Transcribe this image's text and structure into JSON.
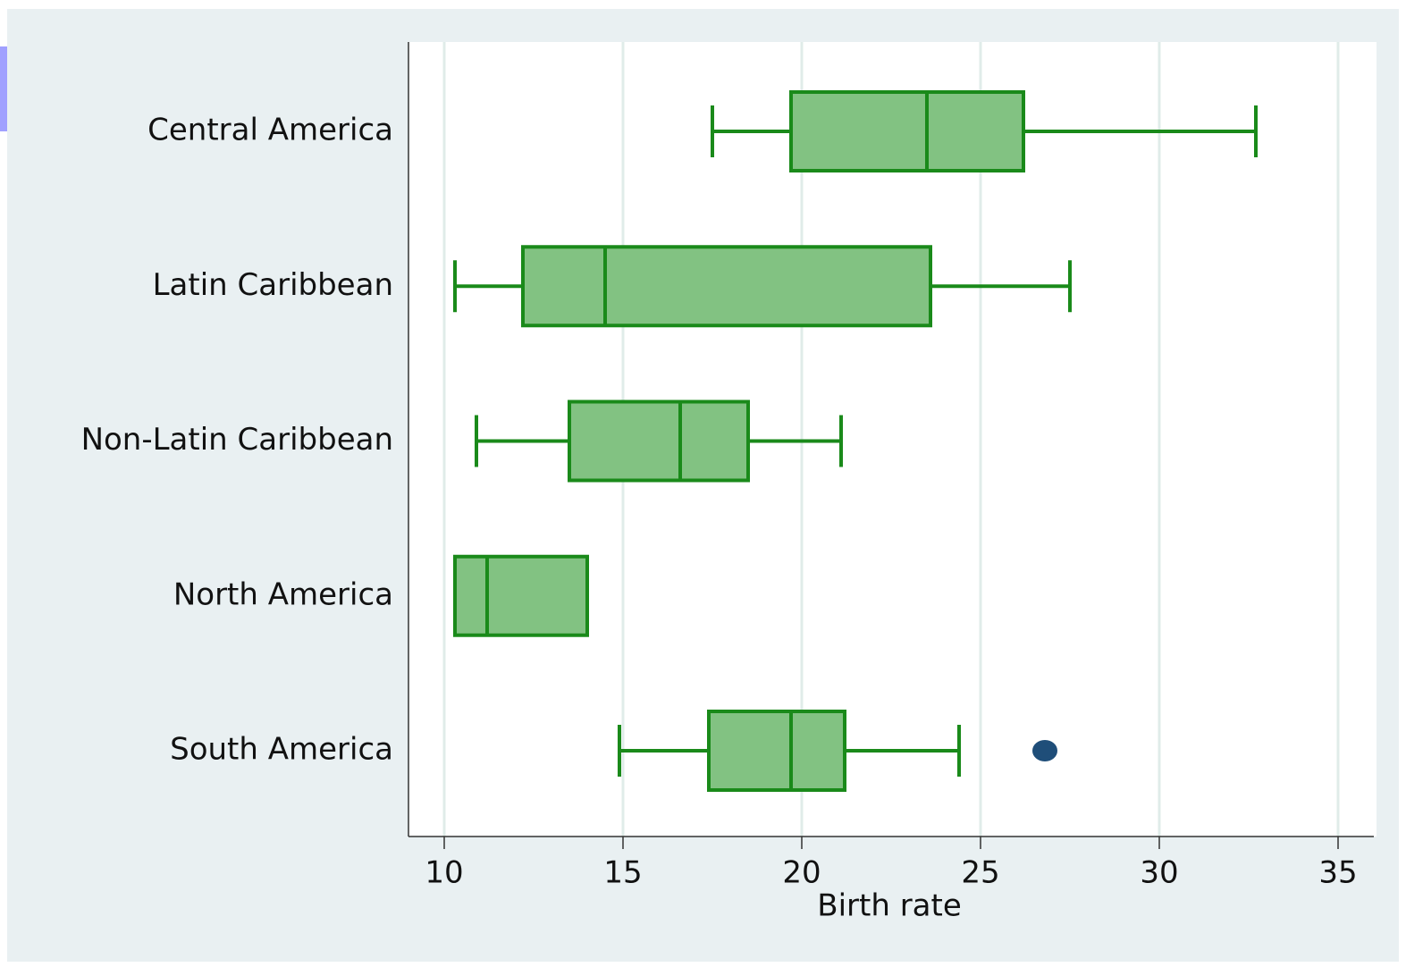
{
  "chart_data": {
    "type": "box",
    "categories": [
      "Central America",
      "Latin Caribbean",
      "Non-Latin Caribbean",
      "North America",
      "South America"
    ],
    "low": [
      17.5,
      10.3,
      10.9,
      10.3,
      14.9
    ],
    "q1": [
      19.7,
      12.2,
      13.5,
      10.3,
      17.4
    ],
    "median": [
      23.5,
      14.5,
      16.6,
      11.2,
      19.7
    ],
    "q3": [
      26.2,
      23.6,
      18.5,
      14.0,
      21.2
    ],
    "high": [
      32.7,
      27.5,
      21.1,
      13.9,
      24.4
    ],
    "outliers": [
      [],
      [],
      [],
      [],
      [
        26.8
      ]
    ],
    "color": "#82c282",
    "edge_color": "#1a8a1a",
    "outlier_color": "#1f4e79",
    "xlabel": "Birth rate",
    "xlim": [
      9,
      36
    ],
    "xticks": [
      10,
      15,
      20,
      25,
      30,
      35
    ],
    "grid": true
  }
}
